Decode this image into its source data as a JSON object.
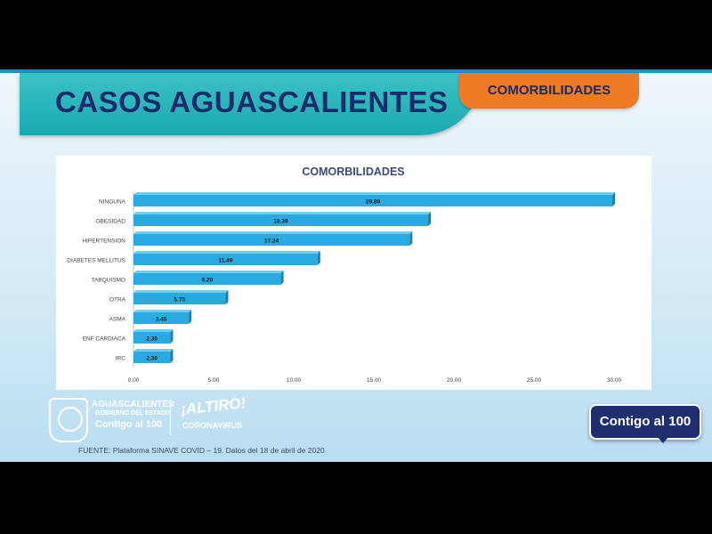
{
  "header": {
    "title": "CASOS AGUASCALIENTES",
    "tag": "COMORBILIDADES"
  },
  "chart_data": {
    "type": "bar",
    "orientation": "horizontal",
    "title": "COMORBILIDADES",
    "categories": [
      "NINGUNA",
      "OBESIDAD",
      "HIPERTENSION",
      "DIABETES MELLITUS",
      "TABQUISMO",
      "OTRA",
      "ASMA",
      "ENF CARDIACA",
      "IRC"
    ],
    "values": [
      29.89,
      18.39,
      17.24,
      11.49,
      9.2,
      5.75,
      3.45,
      2.3,
      2.3
    ],
    "value_labels": [
      "29.89",
      "18.39",
      "17.24",
      "11.49",
      "9.20",
      "5.75",
      "3.45",
      "2.30",
      "2.30"
    ],
    "xlim": [
      0,
      30
    ],
    "xticks": [
      "0.00",
      "5.00",
      "10.00",
      "15.00",
      "20.00",
      "25.00",
      "30.00"
    ],
    "bar_color": "#29abe2",
    "grid": false,
    "legend": "none"
  },
  "footer": {
    "state_name": "AGUASCALIENTES",
    "state_sub": "GOBIERNO DEL ESTADO",
    "state_contigo": "Contigo al 100",
    "altiro": "¡ALTIRO!",
    "altiro_sub": "CORONAVIRUS",
    "badge": "Contigo al 100",
    "source": "FUENTE: Plataforma SINAVE COVID – 19. Datos del 18 de abril de 2020"
  },
  "colors": {
    "title_banner": "#19aab0",
    "title_text": "#1b2a6b",
    "tag_bg": "#ef7a24",
    "badge_bg": "#1e2e6e"
  }
}
